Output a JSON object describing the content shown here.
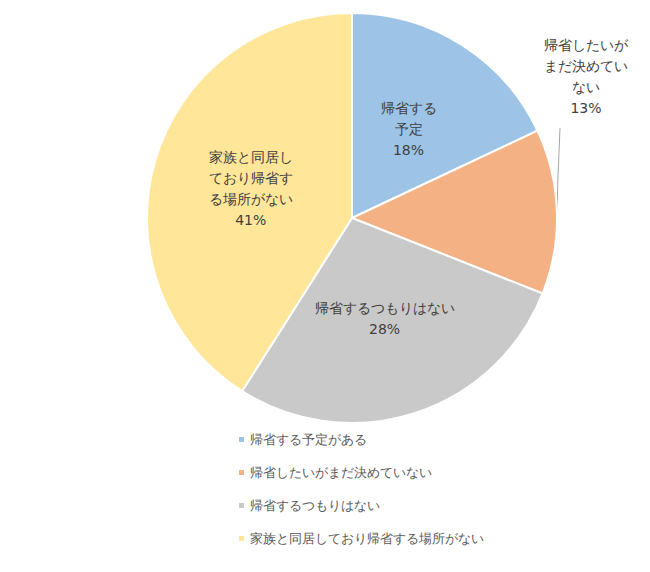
{
  "chart_data": {
    "type": "pie",
    "categories": [
      "帰省する予定がある",
      "帰省したいがまだ決めていない",
      "帰省するつもりはない",
      "家族と同居しており帰省する場所がない"
    ],
    "slice_labels": [
      "帰省する予定",
      "帰省したいがまだ決めていない",
      "帰省するつもりはない",
      "家族と同居しており帰省する場所がない"
    ],
    "values": [
      18,
      13,
      28,
      41
    ],
    "value_labels": [
      "18%",
      "13%",
      "28%",
      "41%"
    ],
    "colors": [
      "#9dc3e6",
      "#f4b183",
      "#c9c9c9",
      "#ffe699"
    ],
    "data_labels": true,
    "legend": "bottom-left"
  }
}
